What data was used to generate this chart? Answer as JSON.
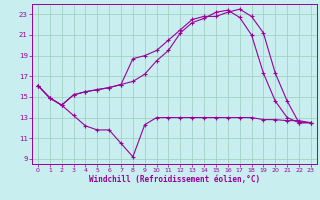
{
  "xlabel": "Windchill (Refroidissement éolien,°C)",
  "bg_color": "#c8eef0",
  "line_color": "#990099",
  "grid_color": "#99ccbb",
  "xlim": [
    -0.5,
    23.5
  ],
  "ylim": [
    8.5,
    24.0
  ],
  "xticks": [
    0,
    1,
    2,
    3,
    4,
    5,
    6,
    7,
    8,
    9,
    10,
    11,
    12,
    13,
    14,
    15,
    16,
    17,
    18,
    19,
    20,
    21,
    22,
    23
  ],
  "yticks": [
    9,
    11,
    13,
    15,
    17,
    19,
    21,
    23
  ],
  "line1_x": [
    0,
    1,
    2,
    3,
    4,
    5,
    6,
    7,
    8,
    9,
    10,
    11,
    12,
    13,
    14,
    15,
    16,
    17,
    18,
    19,
    20,
    21,
    22,
    23
  ],
  "line1_y": [
    16.1,
    14.9,
    14.2,
    13.2,
    12.2,
    11.8,
    11.8,
    10.5,
    9.2,
    12.3,
    13.0,
    13.0,
    13.0,
    13.0,
    13.0,
    13.0,
    13.0,
    13.0,
    13.0,
    12.8,
    12.8,
    12.7,
    12.7,
    12.5
  ],
  "line2_x": [
    0,
    1,
    2,
    3,
    4,
    5,
    6,
    7,
    8,
    9,
    10,
    11,
    12,
    13,
    14,
    15,
    16,
    17,
    18,
    19,
    20,
    21,
    22,
    23
  ],
  "line2_y": [
    16.1,
    14.9,
    14.2,
    15.2,
    15.5,
    15.7,
    15.9,
    16.2,
    16.5,
    17.2,
    18.5,
    19.5,
    21.2,
    22.2,
    22.6,
    23.2,
    23.4,
    22.7,
    21.0,
    17.3,
    14.6,
    13.0,
    12.5,
    12.5
  ],
  "line3_x": [
    0,
    1,
    2,
    3,
    4,
    5,
    6,
    7,
    8,
    9,
    10,
    11,
    12,
    13,
    14,
    15,
    16,
    17,
    18,
    19,
    20,
    21,
    22,
    23
  ],
  "line3_y": [
    16.1,
    14.9,
    14.2,
    15.2,
    15.5,
    15.7,
    15.9,
    16.2,
    18.7,
    19.0,
    19.5,
    20.5,
    21.5,
    22.5,
    22.8,
    22.8,
    23.2,
    23.5,
    22.8,
    21.2,
    17.3,
    14.6,
    12.5,
    12.5
  ]
}
